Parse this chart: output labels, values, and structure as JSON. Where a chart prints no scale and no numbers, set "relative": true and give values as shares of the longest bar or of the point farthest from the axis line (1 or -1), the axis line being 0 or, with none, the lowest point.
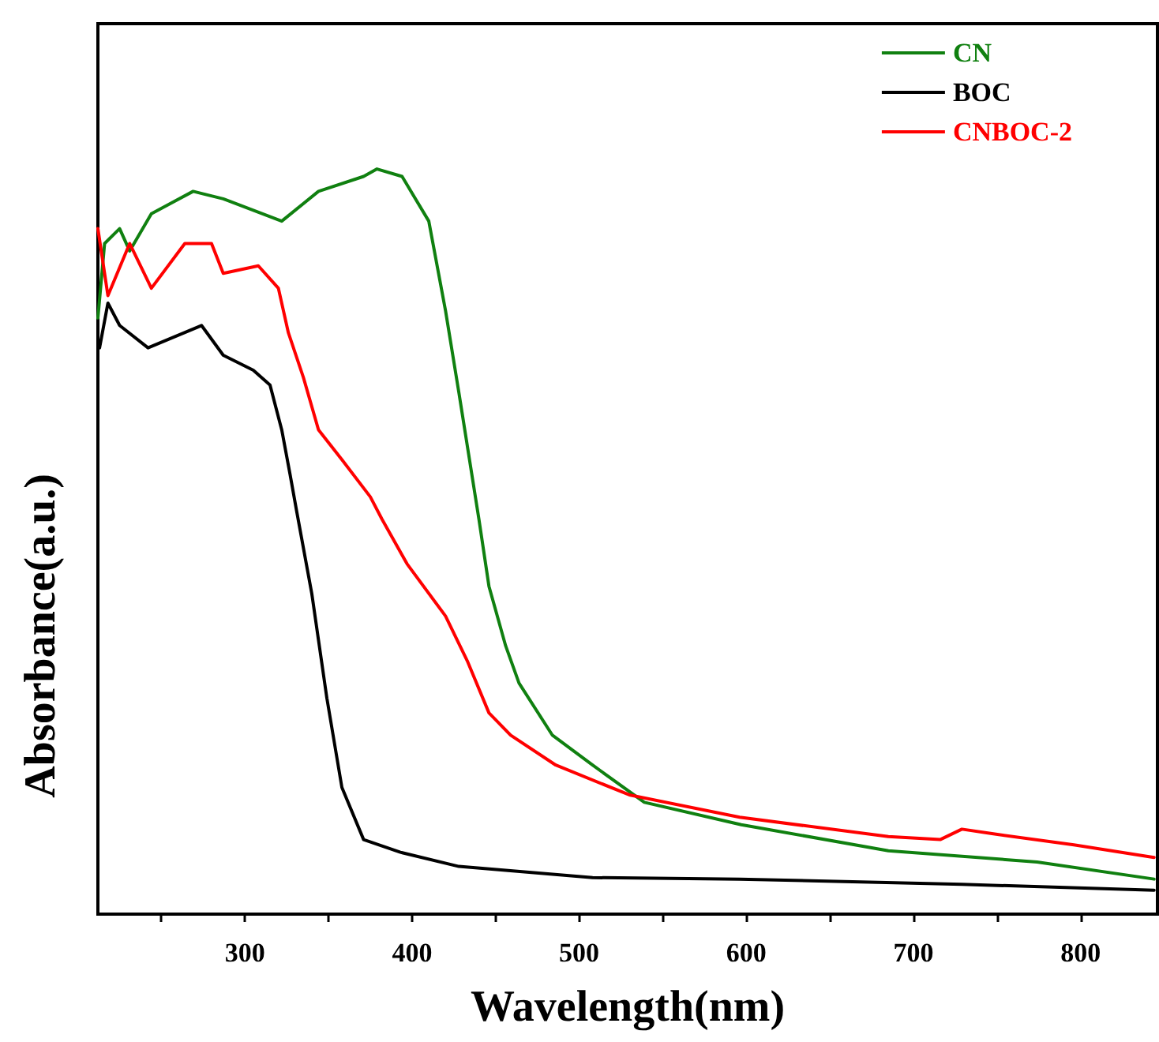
{
  "chart_data": {
    "type": "line",
    "relative": true,
    "xlabel": "Wavelength(nm)",
    "ylabel": "Absorbance(a.u.)",
    "xlim": [
      212,
      846
    ],
    "xticks": [
      {
        "value": 250,
        "label": null
      },
      300,
      {
        "value": 350,
        "label": null
      },
      400,
      {
        "value": 450,
        "label": null
      },
      500,
      {
        "value": 550,
        "label": null
      },
      600,
      {
        "value": 650,
        "label": null
      },
      700,
      {
        "value": 750,
        "label": null
      },
      800
    ],
    "grid": false,
    "legend": "top right",
    "marker": "none",
    "line_style": "solid",
    "series": [
      {
        "name": "CN",
        "color": "#108010",
        "x": [
          212,
          216,
          225,
          231,
          244,
          269,
          287,
          322,
          344,
          371,
          379,
          394,
          410,
          420,
          428,
          440,
          446,
          456,
          464,
          484,
          508,
          539,
          597,
          685,
          774,
          844
        ],
        "values": [
          0.8,
          0.9,
          0.92,
          0.89,
          0.94,
          0.97,
          0.96,
          0.93,
          0.97,
          0.99,
          1.0,
          0.99,
          0.93,
          0.81,
          0.7,
          0.53,
          0.44,
          0.36,
          0.31,
          0.24,
          0.2,
          0.15,
          0.12,
          0.085,
          0.07,
          0.047
        ]
      },
      {
        "name": "BOC",
        "color": "#000000",
        "x": [
          213,
          218,
          225,
          242,
          274,
          287,
          305,
          315,
          322,
          327,
          331,
          340,
          349,
          358,
          371,
          393,
          428,
          508,
          596,
          729,
          844
        ],
        "values": [
          0.76,
          0.82,
          0.79,
          0.76,
          0.79,
          0.75,
          0.73,
          0.71,
          0.65,
          0.59,
          0.54,
          0.43,
          0.29,
          0.17,
          0.1,
          0.083,
          0.064,
          0.049,
          0.047,
          0.04,
          0.032
        ]
      },
      {
        "name": "CNBOC-2",
        "color": "#ff0000",
        "x": [
          212,
          218,
          231,
          244,
          264,
          280,
          287,
          308,
          320,
          326,
          335,
          344,
          358,
          375,
          382,
          397,
          420,
          433,
          446,
          459,
          486,
          530,
          596,
          685,
          716,
          729,
          747,
          796,
          844
        ],
        "values": [
          0.92,
          0.83,
          0.9,
          0.84,
          0.9,
          0.9,
          0.86,
          0.87,
          0.84,
          0.78,
          0.72,
          0.65,
          0.61,
          0.56,
          0.53,
          0.47,
          0.4,
          0.34,
          0.27,
          0.24,
          0.2,
          0.16,
          0.13,
          0.104,
          0.1,
          0.114,
          0.108,
          0.093,
          0.076
        ]
      }
    ]
  }
}
